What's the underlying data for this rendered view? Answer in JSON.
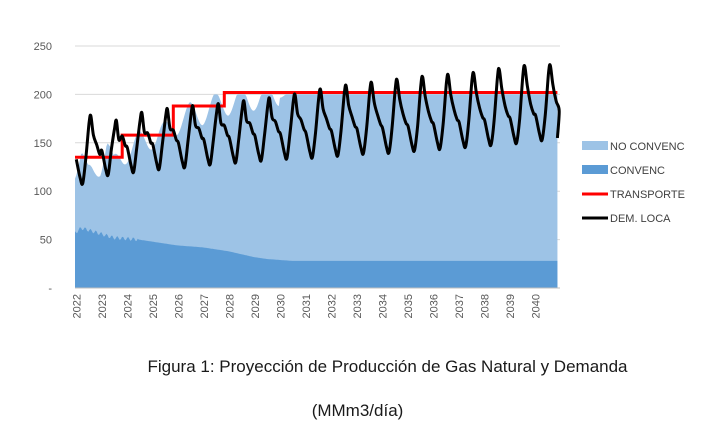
{
  "chart_data": {
    "type": "area",
    "yticks": [
      0,
      50,
      100,
      150,
      200,
      250
    ],
    "ytick_labels": [
      "-",
      "50",
      "100",
      "150",
      "200",
      "250"
    ],
    "ylim": [
      0,
      250
    ],
    "xlim": [
      2022,
      2041
    ],
    "x_tick_labels": [
      "2022",
      "2023",
      "2024",
      "2025",
      "2026",
      "2027",
      "2028",
      "2029",
      "2030",
      "2031",
      "2032",
      "2033",
      "2034",
      "2035",
      "2036",
      "2037",
      "2038",
      "2039",
      "2040"
    ],
    "legend_position": "right",
    "series": [
      {
        "name": "NO CONVENC",
        "type": "stacked-area",
        "color": "#9dc3e6",
        "note_total_points_x": [
          2022.0,
          2022.25,
          2022.5,
          2022.75,
          2023.0,
          2023.25,
          2023.5,
          2023.75,
          2024.0,
          2024.5,
          2025.0,
          2025.5,
          2026.0,
          2026.5,
          2027.0,
          2027.5,
          2028.0,
          2028.5,
          2029.0,
          2029.5,
          2030.0,
          2030.5,
          2031.0,
          2031.5,
          2032.0,
          2033.0,
          2034.0,
          2035.0,
          2036.0,
          2037.0,
          2038.0,
          2039.0,
          2040.0,
          2040.9
        ],
        "total_values": [
          125,
          140,
          115,
          120,
          128,
          150,
          125,
          135,
          140,
          150,
          155,
          160,
          170,
          180,
          180,
          190,
          190,
          195,
          195,
          198,
          200,
          200,
          200,
          200,
          200,
          200,
          200,
          200,
          200,
          200,
          200,
          200,
          200,
          200
        ]
      },
      {
        "name": "CONVENC",
        "type": "area",
        "color": "#5b9bd5",
        "x": [
          2022.0,
          2022.25,
          2022.5,
          2022.75,
          2023.0,
          2023.5,
          2024.0,
          2024.5,
          2025.0,
          2025.5,
          2026.0,
          2026.5,
          2027.0,
          2027.5,
          2028.0,
          2028.5,
          2029.0,
          2029.5,
          2030.0,
          2030.5,
          2031.0,
          2032.0,
          2034.0,
          2036.0,
          2038.0,
          2040.0,
          2040.9
        ],
        "values": [
          57,
          62,
          60,
          58,
          56,
          52,
          51,
          50,
          48,
          46,
          44,
          43,
          42,
          40,
          38,
          35,
          32,
          30,
          29,
          28,
          28,
          28,
          28,
          28,
          28,
          28,
          28
        ]
      },
      {
        "name": "TRANSPORTE",
        "type": "step",
        "color": "#ff0000",
        "steps": [
          {
            "from": 2022.0,
            "to": 2023.85,
            "value": 135
          },
          {
            "from": 2023.85,
            "to": 2025.85,
            "value": 158
          },
          {
            "from": 2025.85,
            "to": 2027.85,
            "value": 188
          },
          {
            "from": 2027.85,
            "to": 2040.9,
            "value": 202
          }
        ]
      },
      {
        "name": "DEM. LOCA",
        "type": "line",
        "color": "#000000",
        "seasonal": true,
        "years": [
          2022,
          2023,
          2024,
          2025,
          2026,
          2027,
          2028,
          2029,
          2030,
          2031,
          2032,
          2033,
          2034,
          2035,
          2036,
          2037,
          2038,
          2039,
          2040
        ],
        "winter_peaks": [
          178,
          173,
          181,
          185,
          188,
          190,
          193,
          196,
          200,
          205,
          209,
          212,
          215,
          218,
          220,
          222,
          226,
          229,
          230
        ],
        "summer_troughs": [
          108,
          117,
          120,
          123,
          125,
          128,
          130,
          132,
          134,
          135,
          137,
          139,
          140,
          142,
          144,
          146,
          148,
          150,
          153
        ],
        "end_value": 155
      }
    ]
  },
  "caption": {
    "line1": "Figura 1: Proyección de Producción de Gas Natural y Demanda",
    "line2": "(MMm3/día)"
  }
}
